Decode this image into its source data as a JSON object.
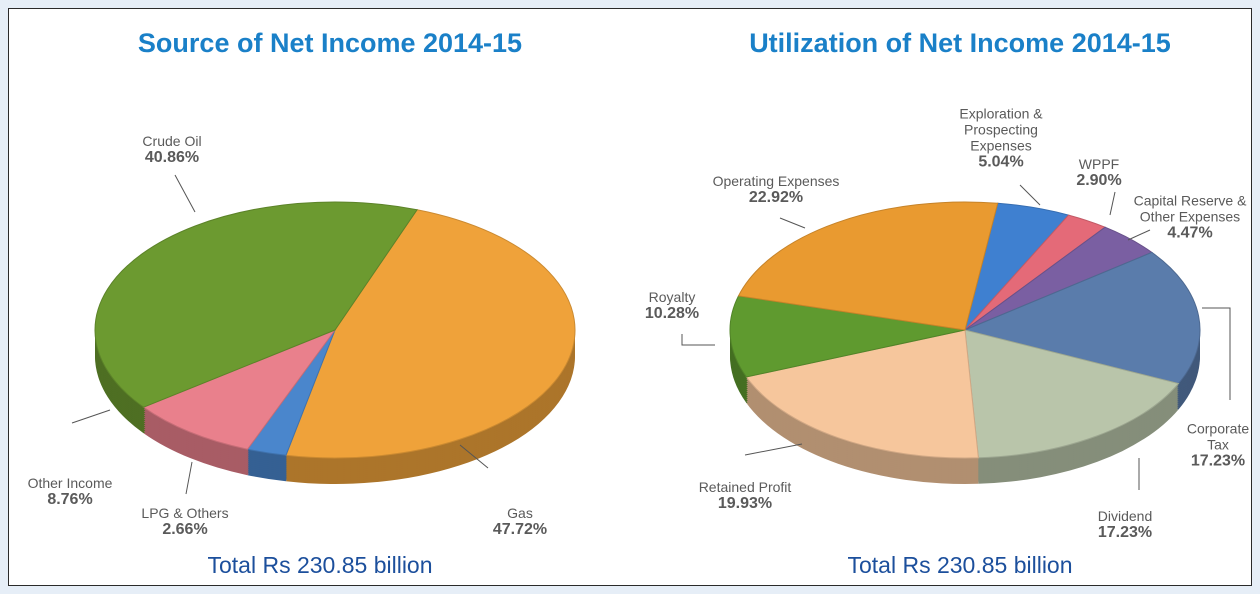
{
  "chart_data": [
    {
      "type": "pie",
      "title": "Source of Net Income 2014-15",
      "categories": [
        "Gas",
        "LPG & Others",
        "Other Income",
        "Crude Oil"
      ],
      "values": [
        47.72,
        2.66,
        8.76,
        40.86
      ],
      "value_labels": [
        "47.72%",
        "2.66%",
        "8.76%",
        "40.86%"
      ],
      "colors": [
        "#efa23a",
        "#4a86cc",
        "#e9808c",
        "#6c9a30"
      ],
      "annotation": "Total Rs 230.85 billion"
    },
    {
      "type": "pie",
      "title": "Utilization of Net Income 2014-15",
      "categories": [
        "Exploration & Prospecting Expenses",
        "WPPF",
        "Capital Reserve & Other Expenses",
        "Corporate Tax",
        "Dividend",
        "Retained Profit",
        "Royalty",
        "Operating Expenses"
      ],
      "values": [
        5.04,
        2.9,
        4.47,
        17.23,
        17.23,
        19.93,
        10.28,
        22.92
      ],
      "value_labels": [
        "5.04%",
        "2.90%",
        "4.47%",
        "17.23%",
        "17.23%",
        "19.93%",
        "10.28%",
        "22.92%"
      ],
      "colors": [
        "#3f80d0",
        "#e46a78",
        "#7a5fa2",
        "#5a7cab",
        "#b9c5aa",
        "#f6c69c",
        "#5f9a2f",
        "#e99a30"
      ],
      "annotation": "Total Rs 230.85 billion"
    }
  ]
}
